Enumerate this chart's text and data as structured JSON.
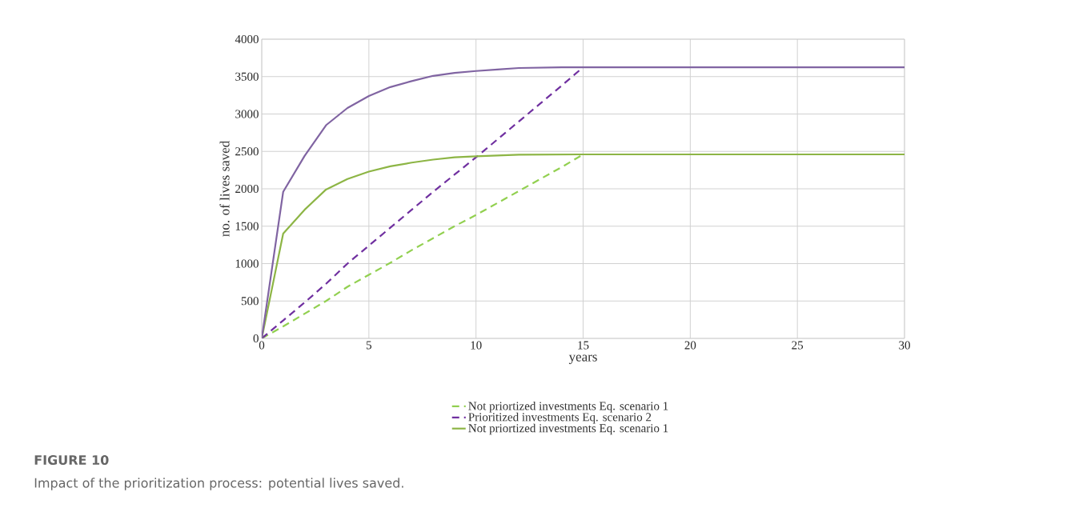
{
  "chart_data": {
    "type": "line",
    "xlabel": "years",
    "ylabel": "no. of  lives saved",
    "xlim": [
      0,
      30
    ],
    "ylim": [
      0,
      4000
    ],
    "xticks": [
      0,
      5,
      10,
      15,
      20,
      25,
      30
    ],
    "yticks": [
      0,
      500,
      1000,
      1500,
      2000,
      2500,
      3000,
      3500,
      4000
    ],
    "grid": true,
    "legend": "bottom",
    "annotations": [
      "FIGURE 10",
      "Impact of the prioritization process: potential lives saved."
    ],
    "series": [
      {
        "name": "Not priortized investments Eq. scenario 1",
        "color": "#92d050",
        "line_style": "dashed",
        "x": [
          0,
          1,
          2,
          3,
          4,
          5,
          6,
          7,
          8,
          9,
          10,
          11,
          12,
          13,
          14,
          15
        ],
        "values": [
          0,
          160,
          330,
          500,
          690,
          850,
          1010,
          1180,
          1340,
          1500,
          1650,
          1810,
          1970,
          2130,
          2290,
          2460
        ]
      },
      {
        "name": "Prioritized investments Eq. scenario 2",
        "color": "#7030a0",
        "line_style": "dashed",
        "x": [
          0,
          1,
          2,
          3,
          4,
          5,
          6,
          7,
          8,
          9,
          10,
          11,
          12,
          13,
          14,
          15
        ],
        "values": [
          0,
          240,
          480,
          730,
          1000,
          1240,
          1480,
          1720,
          1960,
          2190,
          2420,
          2660,
          2900,
          3140,
          3380,
          3625
        ]
      },
      {
        "name": "Not priortized investments Eq. scenario 1",
        "color": "#8db545",
        "line_style": "solid",
        "x": [
          0,
          1,
          2,
          3,
          4,
          5,
          6,
          7,
          8,
          9,
          10,
          11,
          12,
          15,
          30
        ],
        "values": [
          0,
          1400,
          1720,
          1990,
          2130,
          2230,
          2300,
          2350,
          2390,
          2420,
          2435,
          2445,
          2455,
          2460,
          2460
        ]
      },
      {
        "color": "#8064a2",
        "line_style": "solid",
        "x": [
          0,
          1,
          2,
          3,
          4,
          5,
          6,
          7,
          8,
          9,
          10,
          11,
          12,
          13,
          14,
          15,
          30
        ],
        "values": [
          0,
          1960,
          2440,
          2850,
          3080,
          3240,
          3360,
          3440,
          3510,
          3550,
          3575,
          3595,
          3615,
          3620,
          3625,
          3625,
          3625
        ]
      }
    ]
  }
}
